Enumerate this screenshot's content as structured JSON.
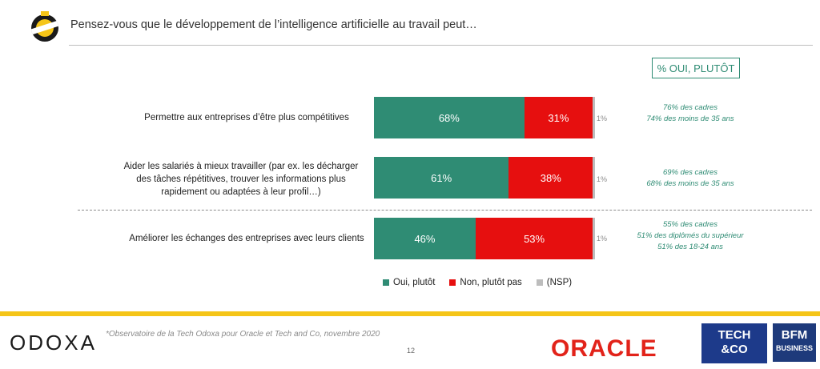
{
  "header": {
    "title": "Pensez-vous que le développement de l’intelligence artificielle au travail peut…"
  },
  "pct_box_label": "% OUI, PLUTÔT",
  "chart_data": {
    "type": "bar",
    "orientation": "horizontal",
    "stacked": true,
    "categories": [
      "Permettre aux entreprises d’être plus compétitives",
      "Aider les salariés à mieux travailler (par ex. les décharger des tâches répétitives, trouver les informations plus rapidement ou adaptées à leur profil…)",
      "Améliorer les échanges des entreprises avec leurs clients"
    ],
    "series": [
      {
        "name": "Oui, plutôt",
        "values": [
          68,
          61,
          46
        ],
        "labels": [
          "68%",
          "61%",
          "46%"
        ],
        "color": "#2f8c74"
      },
      {
        "name": "Non, plutôt pas",
        "values": [
          31,
          38,
          53
        ],
        "labels": [
          "31%",
          "38%",
          "53%"
        ],
        "color": "#e60f0f"
      },
      {
        "name": "(NSP)",
        "values": [
          1,
          1,
          1
        ],
        "labels": [
          "1%",
          "1%",
          "1%"
        ],
        "color": "#bdbdbd"
      }
    ],
    "xlim": [
      0,
      100
    ],
    "legend_position": "bottom",
    "grid": false,
    "annotations": [
      [
        "76% des cadres",
        "74% des moins de 35 ans"
      ],
      [
        "69% des cadres",
        "68% des moins de 35 ans"
      ],
      [
        "55% des cadres",
        "51% des diplômés du supérieur",
        "51% des 18-24 ans"
      ]
    ]
  },
  "footer": {
    "brand": "ODOXA",
    "source": "*Observatoire de la Tech Odoxa pour Oracle et Tech and Co, novembre 2020",
    "page_number": "12",
    "partner_oracle": "ORACLE",
    "partner_techco": [
      "TECH",
      "&CO"
    ],
    "partner_bfm": [
      "BFM",
      "BUSINESS"
    ]
  }
}
